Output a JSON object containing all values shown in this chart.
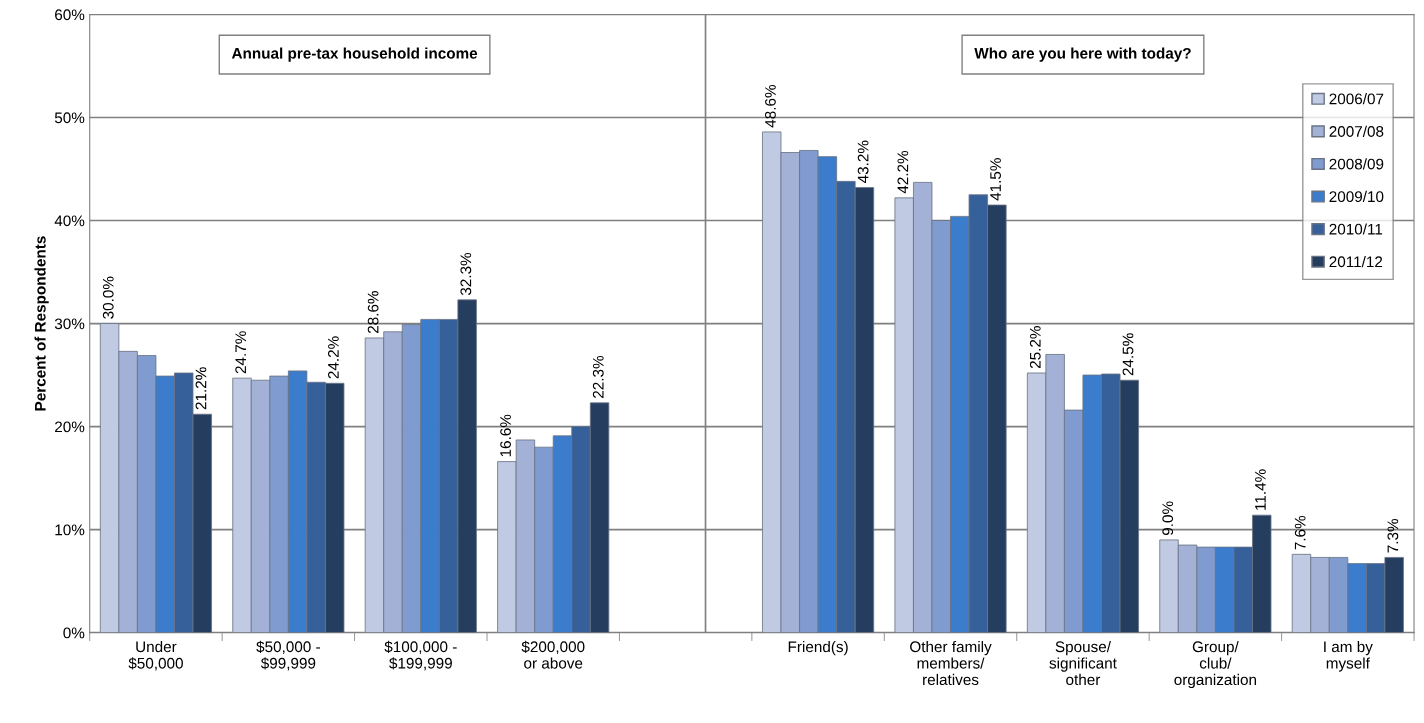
{
  "chart_data": {
    "type": "bar",
    "ylabel": "Percent of Respondents",
    "categories": [
      "Under\n$50,000",
      "$50,000 -\n$99,999",
      "$100,000 -\n$199,999",
      "$200,000\nor above",
      null,
      "Friend(s)",
      "Other family\nmembers/\nrelatives",
      "Spouse/\nsignificant\nother",
      "Group/\nclub/\norganization",
      "I am by\nmyself"
    ],
    "series": [
      {
        "name": "2006/07",
        "color": "#c0cbe3",
        "values": [
          30.0,
          24.7,
          28.6,
          16.6,
          null,
          48.6,
          42.2,
          25.2,
          9.0,
          7.6
        ],
        "value_labels": [
          "30.0%",
          "24.7%",
          "28.6%",
          "16.6%",
          null,
          "48.6%",
          "42.2%",
          "25.2%",
          "9.0%",
          "7.6%"
        ]
      },
      {
        "name": "2007/08",
        "color": "#a3b1d6",
        "values": [
          27.3,
          24.5,
          29.2,
          18.7,
          null,
          46.6,
          43.7,
          27.0,
          8.5,
          7.3
        ]
      },
      {
        "name": "2008/09",
        "color": "#7f9bcf",
        "values": [
          26.9,
          24.9,
          29.9,
          18.0,
          null,
          46.8,
          40.0,
          21.6,
          8.3,
          7.3
        ]
      },
      {
        "name": "2009/10",
        "color": "#3b7dcc",
        "values": [
          24.9,
          25.4,
          30.4,
          19.1,
          null,
          46.2,
          40.4,
          25.0,
          8.3,
          6.7
        ]
      },
      {
        "name": "2010/11",
        "color": "#36609a",
        "values": [
          25.2,
          24.3,
          30.4,
          20.0,
          null,
          43.8,
          42.5,
          25.1,
          8.3,
          6.7
        ]
      },
      {
        "name": "2011/12",
        "color": "#253e60",
        "values": [
          21.2,
          24.2,
          32.3,
          22.3,
          null,
          43.2,
          41.5,
          24.5,
          11.4,
          7.3
        ],
        "value_labels": [
          "21.2%",
          "24.2%",
          "32.3%",
          "22.3%",
          null,
          "43.2%",
          "41.5%",
          "24.5%",
          "11.4%",
          "7.3%"
        ]
      }
    ],
    "ylim": [
      0,
      60
    ],
    "yticks": [
      {
        "value": 0,
        "label": "0%"
      },
      {
        "value": 10,
        "label": "10%"
      },
      {
        "value": 20,
        "label": "20%"
      },
      {
        "value": 30,
        "label": "30%"
      },
      {
        "value": 40,
        "label": "40%"
      },
      {
        "value": 50,
        "label": "50%"
      },
      {
        "value": 60,
        "label": "60%"
      }
    ],
    "grid": "y",
    "legend": "top right",
    "annotations": [
      "Annual pre-tax household income",
      "Who are you here with today?"
    ]
  }
}
